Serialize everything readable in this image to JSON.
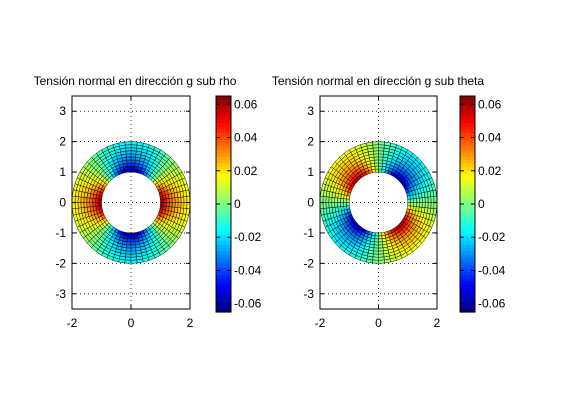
{
  "chart_data": [
    {
      "type": "heatmap",
      "plot_kind": "polar annulus surface",
      "title": "Tensión normal en dirección g sub rho",
      "inner_radius": 1,
      "outer_radius": 2,
      "xlim": [
        -2,
        2
      ],
      "ylim": [
        -3.5,
        3.5
      ],
      "x_ticks": [
        "-2",
        "0",
        "2"
      ],
      "y_ticks": [
        "-3",
        "-2",
        "-1",
        "0",
        "1",
        "2",
        "3"
      ],
      "grid": true,
      "grid_style": "dotted",
      "field": {
        "amplitude": 0.065,
        "dependence": "cos(2*theta)",
        "phase_deg": 0,
        "decay": "1/r^2"
      },
      "colorbar": {
        "colormap": "jet",
        "clim": [
          -0.065,
          0.065
        ],
        "ticks": [
          "0.06",
          "0.04",
          "0.02",
          "0",
          "-0.02",
          "-0.04",
          "-0.06"
        ],
        "tick_values": [
          0.06,
          0.04,
          0.02,
          0,
          -0.02,
          -0.04,
          -0.06
        ]
      }
    },
    {
      "type": "heatmap",
      "plot_kind": "polar annulus surface",
      "title": "Tensión normal en dirección g sub theta",
      "inner_radius": 1,
      "outer_radius": 2,
      "xlim": [
        -2,
        2
      ],
      "ylim": [
        -3.5,
        3.5
      ],
      "x_ticks": [
        "-2",
        "0",
        "2"
      ],
      "y_ticks": [
        "-3",
        "-2",
        "-1",
        "0",
        "1",
        "2",
        "3"
      ],
      "grid": true,
      "grid_style": "dotted",
      "field": {
        "amplitude": 0.065,
        "dependence": "cos(2*theta)",
        "phase_deg": 90,
        "decay": "1/r^2"
      },
      "colorbar": {
        "colormap": "jet",
        "clim": [
          -0.065,
          0.065
        ],
        "ticks": [
          "0.06",
          "0.04",
          "0.02",
          "0",
          "-0.02",
          "-0.04",
          "-0.06"
        ],
        "tick_values": [
          0.06,
          0.04,
          0.02,
          0,
          -0.02,
          -0.04,
          -0.06
        ]
      }
    }
  ]
}
